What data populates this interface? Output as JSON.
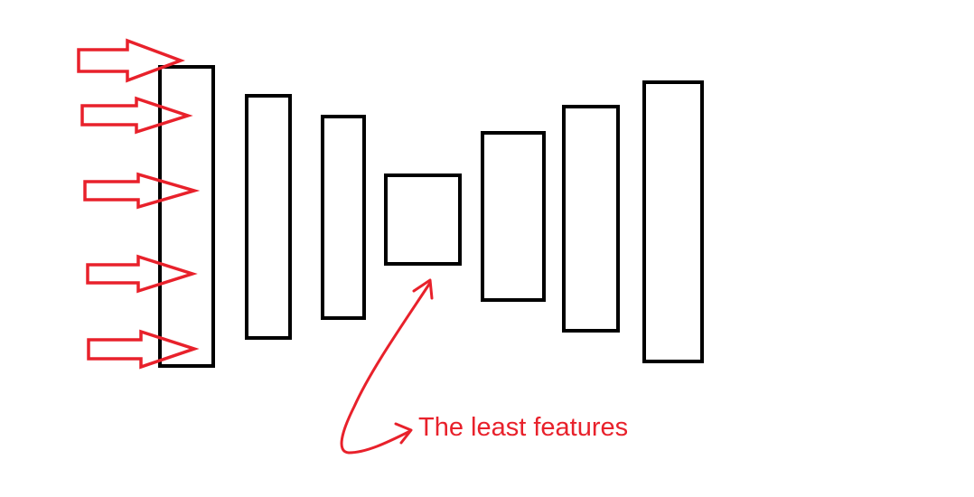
{
  "annotation": {
    "text": "The least features",
    "color": "#e8212b"
  },
  "diagram": {
    "layer_color": "#000000",
    "arrow_color": "#e8212b",
    "layers": [
      {
        "name": "layer-1-input"
      },
      {
        "name": "layer-2"
      },
      {
        "name": "layer-3"
      },
      {
        "name": "layer-4-bottleneck"
      },
      {
        "name": "layer-5"
      },
      {
        "name": "layer-6"
      },
      {
        "name": "layer-7-output"
      }
    ],
    "input_arrow_count": 5
  }
}
